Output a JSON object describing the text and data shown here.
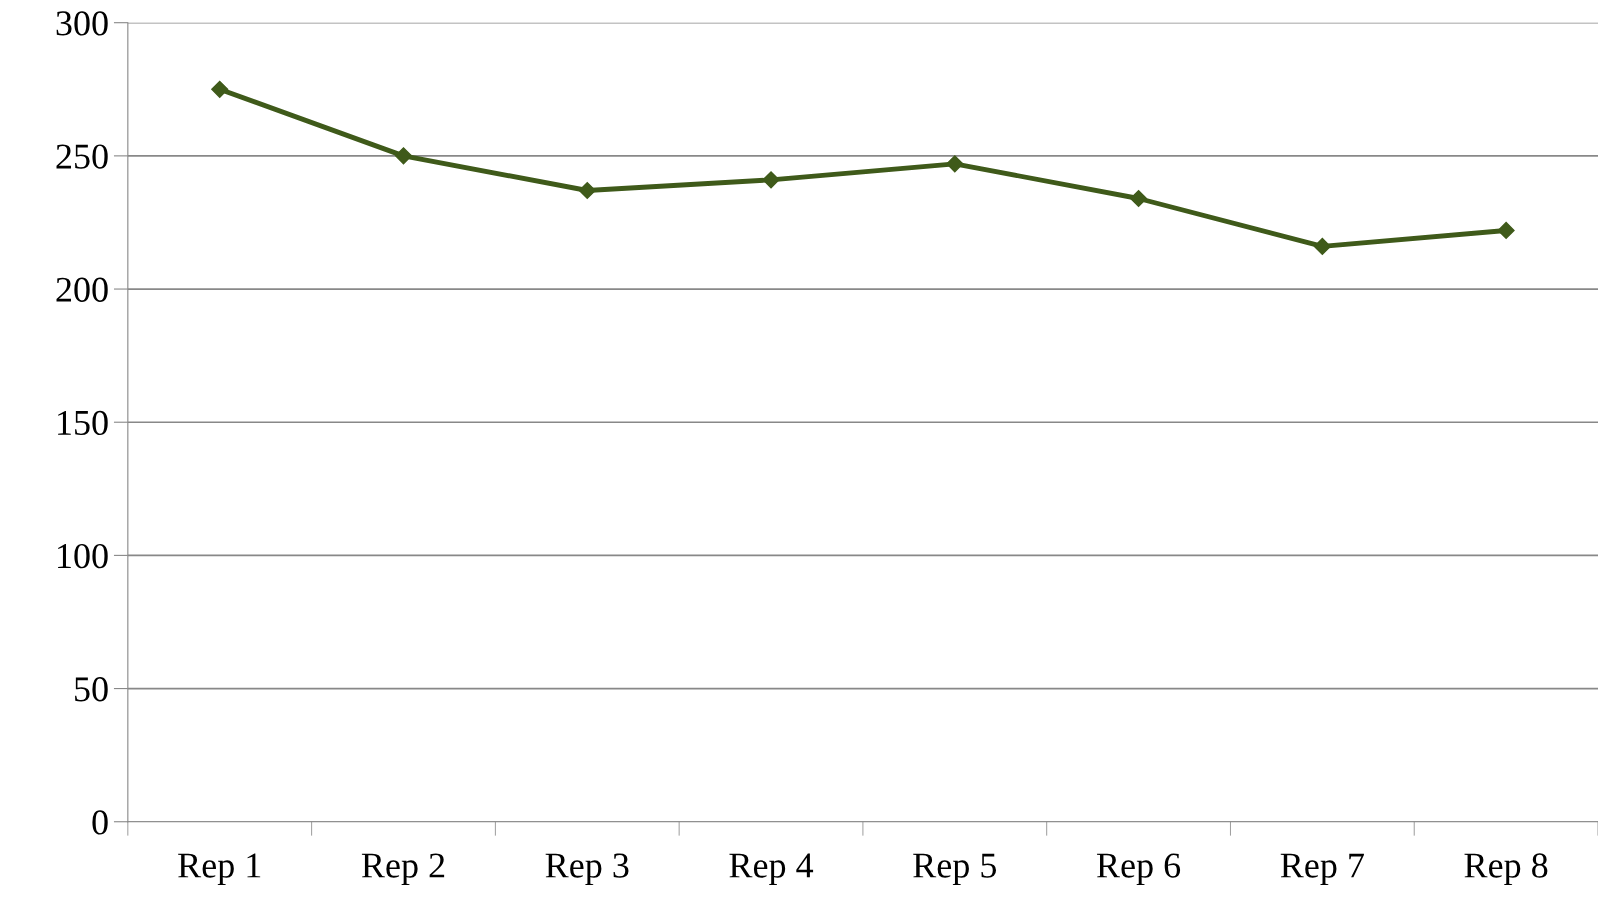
{
  "chart_data": {
    "type": "line",
    "categories": [
      "Rep 1",
      "Rep 2",
      "Rep 3",
      "Rep 4",
      "Rep 5",
      "Rep 6",
      "Rep 7",
      "Rep 8"
    ],
    "series": [
      {
        "color": "#3f5a1a",
        "values": [
          275,
          250,
          237,
          241,
          247,
          234,
          216,
          222
        ]
      }
    ],
    "ylim": [
      0,
      300
    ],
    "yticks": [
      0,
      50,
      100,
      150,
      200,
      250,
      300
    ],
    "grid": "y",
    "marker": "diamond",
    "line_style": "solid"
  }
}
